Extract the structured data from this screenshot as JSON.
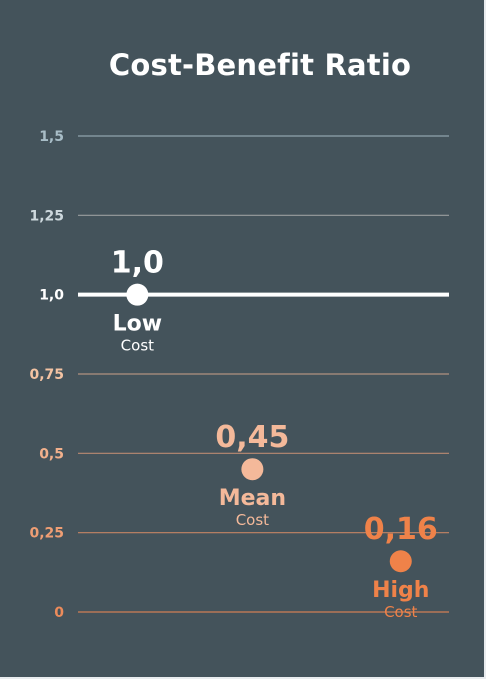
{
  "chart_data": {
    "type": "scatter",
    "title": "Cost-Benefit Ratio",
    "ylim": [
      0,
      1.5
    ],
    "y_ticks": [
      {
        "value": 1.5,
        "label": "1,5",
        "color": "#a8bdc7"
      },
      {
        "value": 1.25,
        "label": "1,25",
        "color": "#cdd8dd"
      },
      {
        "value": 1.0,
        "label": "1,0",
        "color": "#ffffff"
      },
      {
        "value": 0.75,
        "label": "0,75",
        "color": "#f3c3a3"
      },
      {
        "value": 0.5,
        "label": "0,5",
        "color": "#f1b08c"
      },
      {
        "value": 0.25,
        "label": "0,25",
        "color": "#ef9e74"
      },
      {
        "value": 0,
        "label": "0",
        "color": "#ec8b5b"
      }
    ],
    "points": [
      {
        "value": 1.0,
        "value_label": "1,0",
        "label": "Low",
        "sublabel": "Cost",
        "color": "#ffffff",
        "x_frac": 0.16
      },
      {
        "value": 0.45,
        "value_label": "0,45",
        "label": "Mean",
        "sublabel": "Cost",
        "color": "#f4b99a",
        "x_frac": 0.47
      },
      {
        "value": 0.16,
        "value_label": "0,16",
        "label": "High",
        "sublabel": "Cost",
        "color": "#ef8249",
        "x_frac": 0.87
      }
    ],
    "reference_line": {
      "value": 1.0,
      "color": "#ffffff"
    },
    "grid": true,
    "grid_colors": {
      "top": "#8fa3ad",
      "bottom": "#d07e55"
    }
  }
}
